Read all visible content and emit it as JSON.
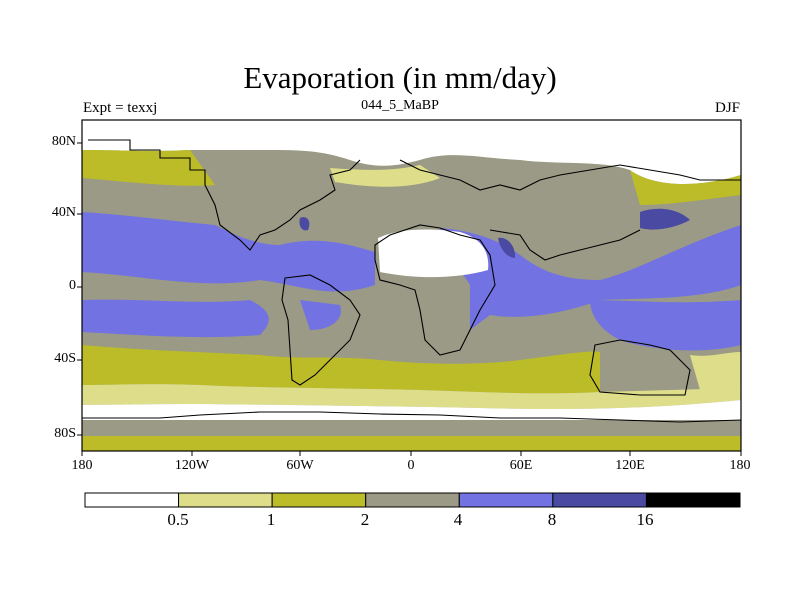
{
  "title": "Evaporation (in mm/day)",
  "subtitle": "044_5_MaBP",
  "left_label": "Expt = texxj",
  "right_label": "DJF",
  "y_ticks": [
    "80N",
    "40N",
    "0",
    "40S",
    "80S"
  ],
  "x_ticks": [
    "180",
    "120W",
    "60W",
    "0",
    "60E",
    "120E",
    "180"
  ],
  "colorbar": {
    "labels": [
      "0.5",
      "1",
      "2",
      "4",
      "8",
      "16"
    ],
    "colors": [
      "#ffffff",
      "#dede8a",
      "#bcbc28",
      "#9a9a86",
      "#7272e2",
      "#4a4aa2",
      "#000000"
    ]
  }
}
